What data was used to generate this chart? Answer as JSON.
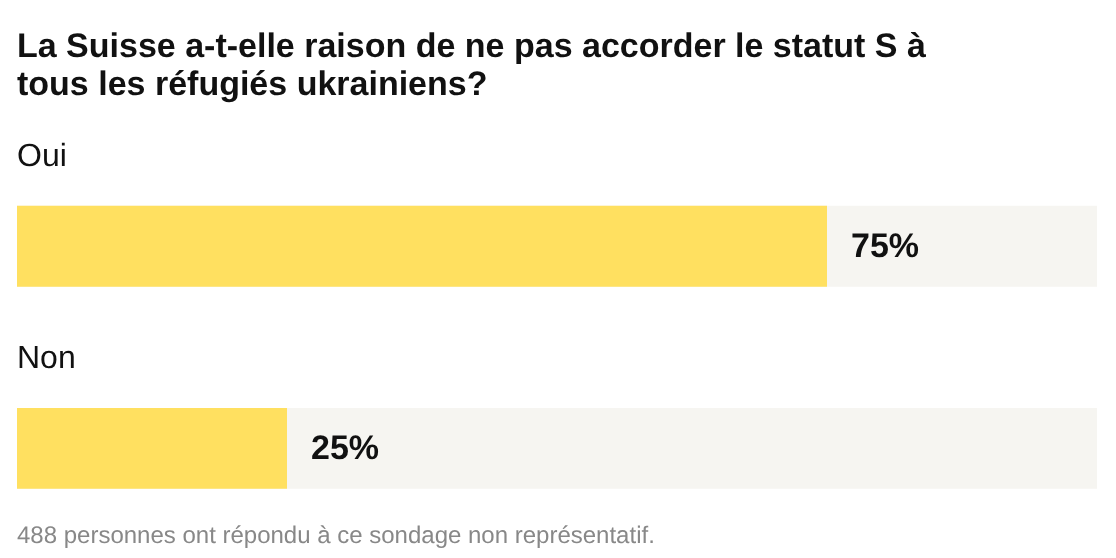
{
  "chart_data": {
    "type": "bar",
    "orientation": "horizontal",
    "title": "La Suisse a-t-elle raison de ne pas accorder le statut S à tous les réfugiés ukrainiens?",
    "categories": [
      "Oui",
      "Non"
    ],
    "values": [
      75,
      25
    ],
    "color": "#ffe060",
    "value_labels": [
      "75%",
      "25%"
    ],
    "xlim": [
      0,
      100
    ],
    "tick_labels": false,
    "grid": false,
    "annotations": [
      "488 personnes ont répondu à ce sondage non représentatif."
    ]
  }
}
